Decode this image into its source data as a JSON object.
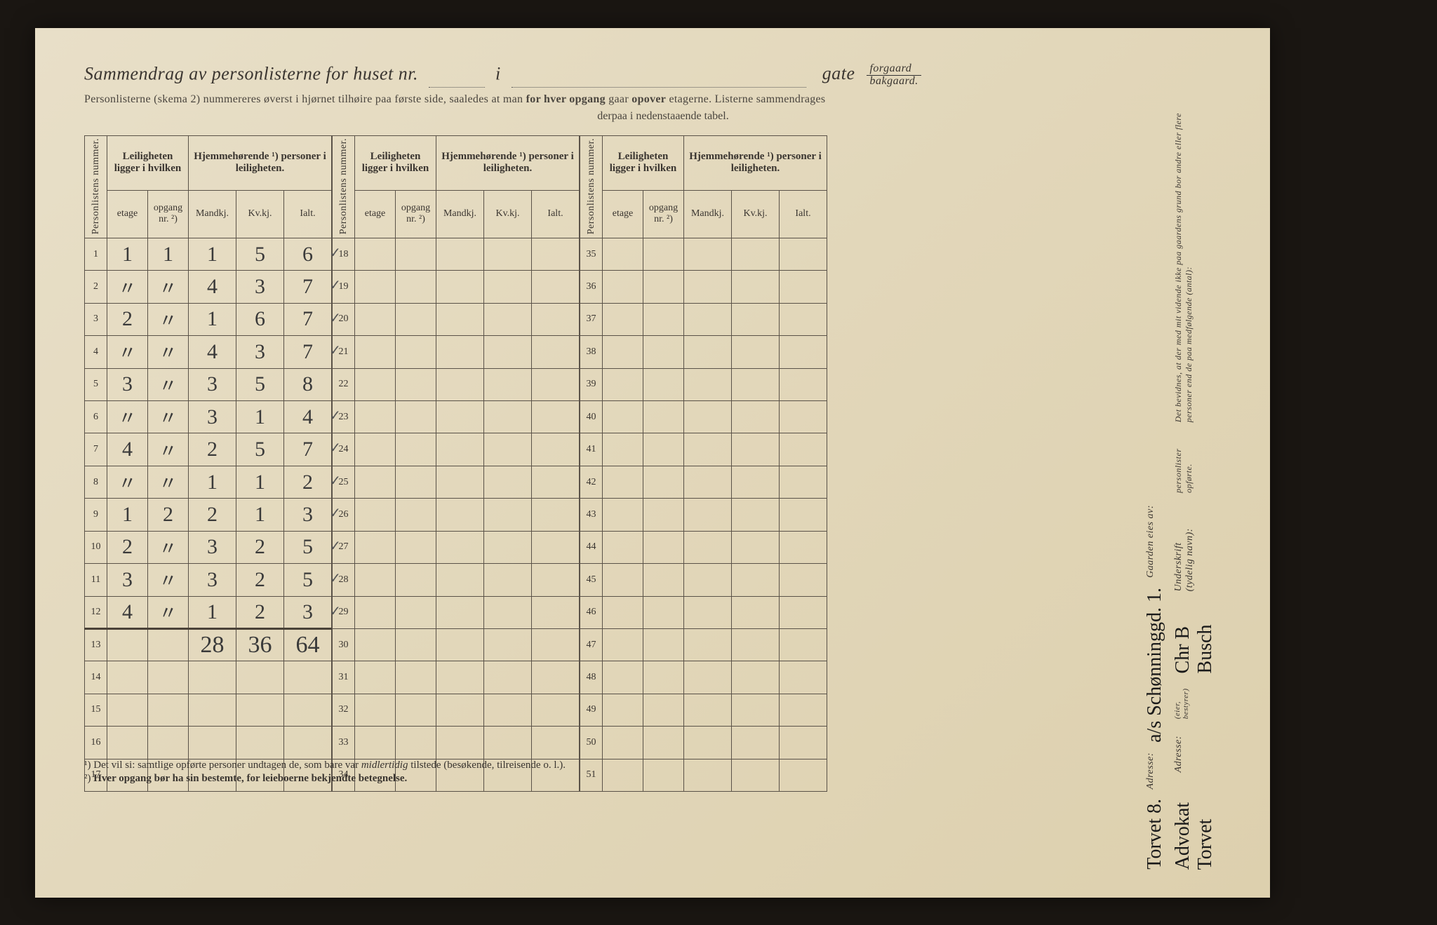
{
  "title": {
    "prefix": "Sammendrag av personlisterne for huset nr.",
    "i": "i",
    "gate": "gate",
    "frac_top": "forgaard",
    "frac_bot": "bakgaard."
  },
  "subtitle1": "Personlisterne (skema 2) nummereres øverst i hjørnet tilhøire paa første side, saaledes at man",
  "subtitle1_bold": "for hver opgang",
  "subtitle1_after": "gaar",
  "subtitle1_bold2": "opover",
  "subtitle1_end": "etagerne.  Listerne sammendrages",
  "subtitle2": "derpaa i nedenstaaende tabel.",
  "headers": {
    "personlistens_nummer": "Personlistens\nnummer.",
    "leiligheten": "Leiligheten\nligger i hvilken",
    "hjemme": "Hjemmehørende ¹)\npersoner i leiligheten.",
    "etage": "etage",
    "opgang": "opgang\nnr. ²)",
    "mandkj": "Mandkj.",
    "kvkj": "Kv.kj.",
    "ialt": "Ialt."
  },
  "block1_rows": [
    {
      "n": "1",
      "etage": "1",
      "opg": "1",
      "m": "1",
      "k": "5",
      "i": "6",
      "ck": "✓"
    },
    {
      "n": "2",
      "etage": "〃",
      "opg": "〃",
      "m": "4",
      "k": "3",
      "i": "7",
      "ck": "✓"
    },
    {
      "n": "3",
      "etage": "2",
      "opg": "〃",
      "m": "1",
      "k": "6",
      "i": "7",
      "ck": "✓"
    },
    {
      "n": "4",
      "etage": "〃",
      "opg": "〃",
      "m": "4",
      "k": "3",
      "i": "7",
      "ck": "✓"
    },
    {
      "n": "5",
      "etage": "3",
      "opg": "〃",
      "m": "3",
      "k": "5",
      "i": "8",
      "ck": ""
    },
    {
      "n": "6",
      "etage": "〃",
      "opg": "〃",
      "m": "3",
      "k": "1",
      "i": "4",
      "ck": "✓"
    },
    {
      "n": "7",
      "etage": "4",
      "opg": "〃",
      "m": "2",
      "k": "5",
      "i": "7",
      "ck": "✓"
    },
    {
      "n": "8",
      "etage": "〃",
      "opg": "〃",
      "m": "1",
      "k": "1",
      "i": "2",
      "ck": "✓"
    },
    {
      "n": "9",
      "etage": "1",
      "opg": "2",
      "m": "2",
      "k": "1",
      "i": "3",
      "ck": "✓"
    },
    {
      "n": "10",
      "etage": "2",
      "opg": "〃",
      "m": "3",
      "k": "2",
      "i": "5",
      "ck": "✓"
    },
    {
      "n": "11",
      "etage": "3",
      "opg": "〃",
      "m": "3",
      "k": "2",
      "i": "5",
      "ck": "✓"
    },
    {
      "n": "12",
      "etage": "4",
      "opg": "〃",
      "m": "1",
      "k": "2",
      "i": "3",
      "ck": "✓"
    },
    {
      "n": "13",
      "etage": "",
      "opg": "",
      "m": "28",
      "k": "36",
      "i": "64",
      "ck": "",
      "total": true
    },
    {
      "n": "14",
      "etage": "",
      "opg": "",
      "m": "",
      "k": "",
      "i": "",
      "ck": ""
    },
    {
      "n": "15",
      "etage": "",
      "opg": "",
      "m": "",
      "k": "",
      "i": "",
      "ck": ""
    },
    {
      "n": "16",
      "etage": "",
      "opg": "",
      "m": "",
      "k": "",
      "i": "",
      "ck": ""
    },
    {
      "n": "17",
      "etage": "",
      "opg": "",
      "m": "",
      "k": "",
      "i": "",
      "ck": ""
    }
  ],
  "block2_start": 18,
  "block2_end": 34,
  "block3_start": 35,
  "block3_end": 51,
  "footnotes": {
    "f1_pre": "¹) Det vil si: samtlige opførte personer undtagen de, som bare var ",
    "f1_it": "midlertidig",
    "f1_post": " tilstede (besøkende, tilreisende o. l.).",
    "f2_pre": "²) ",
    "f2_bold": "Hver opgang bør ha sin bestemte, for leieboerne bekjendte betegnelse."
  },
  "side": {
    "det_bevidnes": "Det bevidnes, at der med mit vidende ikke paa gaardens grund bor andre eller flere personer end de paa medfølgende (antal):",
    "personlister": "personlister opførte.",
    "underskrift_label": "Underskrift (tydelig navn):",
    "underskrift_value": "Chr B Busch",
    "eier_bestyrer": "(eier, bestyrer)",
    "adresse_label": "Adresse:",
    "adresse_value": "Advokat  Torvet",
    "gaarden_label": "Gaarden eies av:",
    "gaarden_value": "a/s Schønninggd. 1.",
    "adresse2_label": "Adresse:",
    "adresse2_value": "Torvet 8."
  },
  "colors": {
    "paper": "#e2d7ba",
    "ink": "#3a3530",
    "border": "#5a5248",
    "hand": "#3a3a3a"
  }
}
